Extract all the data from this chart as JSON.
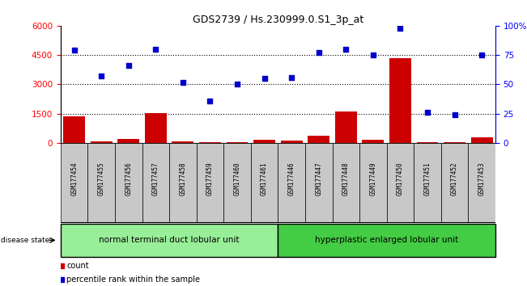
{
  "title": "GDS2739 / Hs.230999.0.S1_3p_at",
  "samples": [
    "GSM177454",
    "GSM177455",
    "GSM177456",
    "GSM177457",
    "GSM177458",
    "GSM177459",
    "GSM177460",
    "GSM177461",
    "GSM177446",
    "GSM177447",
    "GSM177448",
    "GSM177449",
    "GSM177450",
    "GSM177451",
    "GSM177452",
    "GSM177453"
  ],
  "counts": [
    1350,
    100,
    200,
    1520,
    100,
    50,
    30,
    150,
    130,
    370,
    1600,
    170,
    4350,
    40,
    30,
    270
  ],
  "percentiles": [
    79,
    57,
    66,
    80,
    52,
    36,
    50,
    55,
    56,
    77,
    80,
    75,
    98,
    26,
    24,
    75
  ],
  "group1_label": "normal terminal duct lobular unit",
  "group1_count": 8,
  "group2_label": "hyperplastic enlarged lobular unit",
  "group2_count": 8,
  "disease_state_label": "disease state",
  "legend_count_label": "count",
  "legend_percentile_label": "percentile rank within the sample",
  "ylim_left": [
    0,
    6000
  ],
  "ylim_right": [
    0,
    100
  ],
  "yticks_left": [
    0,
    1500,
    3000,
    4500,
    6000
  ],
  "yticks_right": [
    0,
    25,
    50,
    75,
    100
  ],
  "bar_color": "#cc0000",
  "scatter_color": "#0000cc",
  "group1_color": "#99ee99",
  "group2_color": "#44cc44",
  "grid_color": "#000000",
  "bg_color": "#ffffff",
  "tick_label_area_color": "#c8c8c8"
}
